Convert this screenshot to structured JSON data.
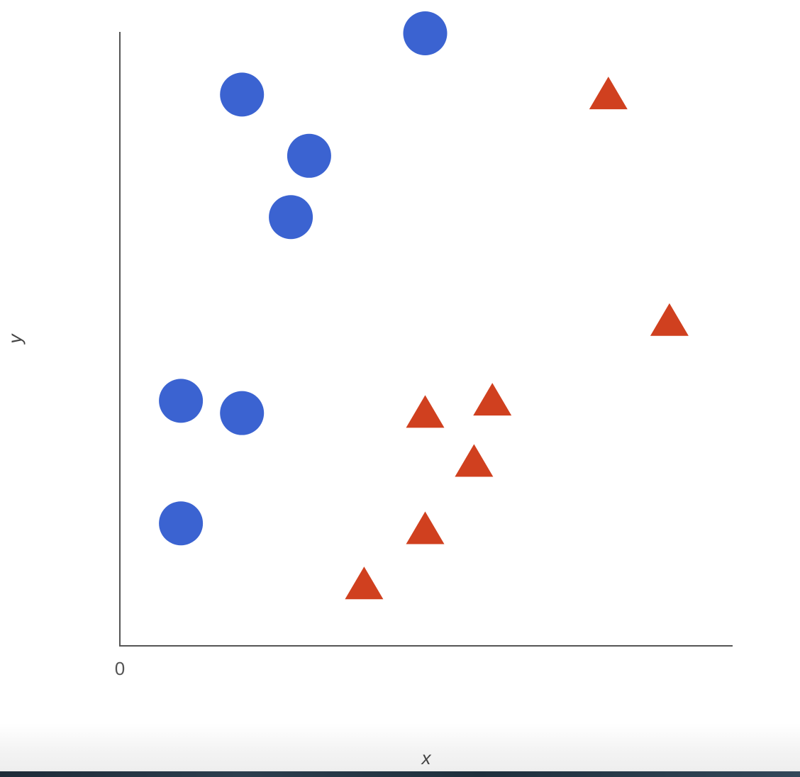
{
  "chart_data": {
    "type": "scatter",
    "xlabel": "x",
    "ylabel": "y",
    "origin_label": "0",
    "xlim": [
      0,
      10
    ],
    "ylim": [
      0,
      10
    ],
    "grid": false,
    "legend": "none",
    "series": [
      {
        "marker": "circle",
        "color": "#3b63d1",
        "points": [
          {
            "x": 5.0,
            "y": 10.0
          },
          {
            "x": 2.0,
            "y": 9.0
          },
          {
            "x": 3.1,
            "y": 8.0
          },
          {
            "x": 2.8,
            "y": 7.0
          },
          {
            "x": 1.0,
            "y": 4.0
          },
          {
            "x": 2.0,
            "y": 3.8
          },
          {
            "x": 1.0,
            "y": 2.0
          }
        ]
      },
      {
        "marker": "triangle",
        "color": "#d0401f",
        "points": [
          {
            "x": 8.0,
            "y": 9.0
          },
          {
            "x": 9.0,
            "y": 5.3
          },
          {
            "x": 6.1,
            "y": 4.0
          },
          {
            "x": 5.0,
            "y": 3.8
          },
          {
            "x": 5.8,
            "y": 3.0
          },
          {
            "x": 5.0,
            "y": 1.9
          },
          {
            "x": 4.0,
            "y": 1.0
          }
        ]
      }
    ]
  }
}
